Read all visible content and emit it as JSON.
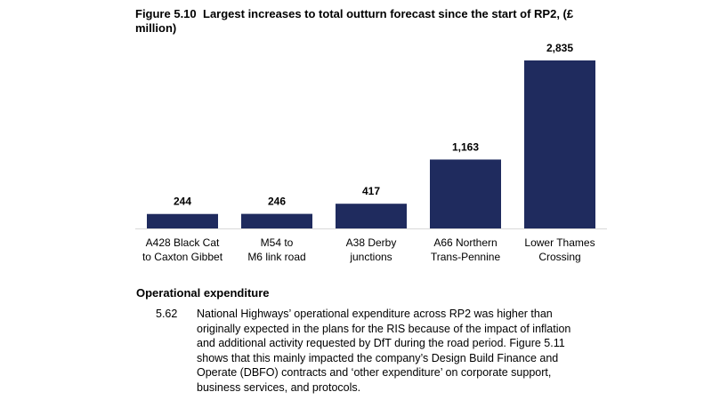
{
  "figure": {
    "number": "Figure 5.10",
    "title": "Largest increases to total outturn forecast since the start of RP2, (£ million)"
  },
  "chart_data": {
    "type": "bar",
    "title": "Largest increases to total outturn forecast since the start of RP2, (£ million)",
    "categories": [
      [
        "A428 Black Cat",
        "to Caxton Gibbet"
      ],
      [
        "M54 to",
        "M6 link road"
      ],
      [
        "A38 Derby",
        "junctions"
      ],
      [
        "A66 Northern",
        "Trans-Pennine"
      ],
      [
        "Lower Thames",
        "Crossing"
      ]
    ],
    "values": [
      244,
      246,
      417,
      1163,
      2835
    ],
    "value_labels": [
      "244",
      "246",
      "417",
      "1,163",
      "2,835"
    ],
    "ylim": [
      0,
      2835
    ],
    "grid": false,
    "bar_color": "#1f2b5e"
  },
  "section": {
    "heading": "Operational expenditure",
    "paragraph_number": "5.62",
    "paragraph_text": "National Highways’ operational expenditure across RP2 was higher than originally expected in the plans for the RIS because of the impact of inflation and additional activity requested by DfT during the road period. Figure 5.11 shows that this mainly impacted the company’s Design Build Finance and Operate (DBFO) contracts and ‘other expenditure’ on corporate support, business services, and protocols."
  }
}
